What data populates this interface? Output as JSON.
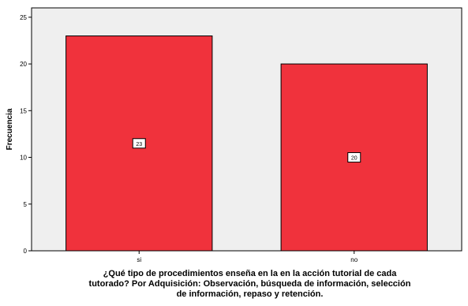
{
  "chart_data": {
    "type": "bar",
    "categories": [
      "si",
      "no"
    ],
    "values": [
      23,
      20
    ],
    "data_labels": [
      "23",
      "20"
    ],
    "ylabel": "Frecuencia",
    "xlabel_lines": [
      "¿Qué tipo de procedimientos enseña en la en la acción tutorial de cada",
      "tutorado? Por Adquisición: Observación, búsqueda de información, selección",
      "de información, repaso y retención."
    ],
    "ylim": [
      0,
      26
    ],
    "yticks": [
      0,
      5,
      10,
      15,
      20,
      25
    ],
    "grid": false,
    "legend": "none",
    "colors": {
      "bar_fill": "#f0323c",
      "bar_stroke": "#000000",
      "plot_background": "#efefef",
      "axis": "#000000"
    }
  }
}
